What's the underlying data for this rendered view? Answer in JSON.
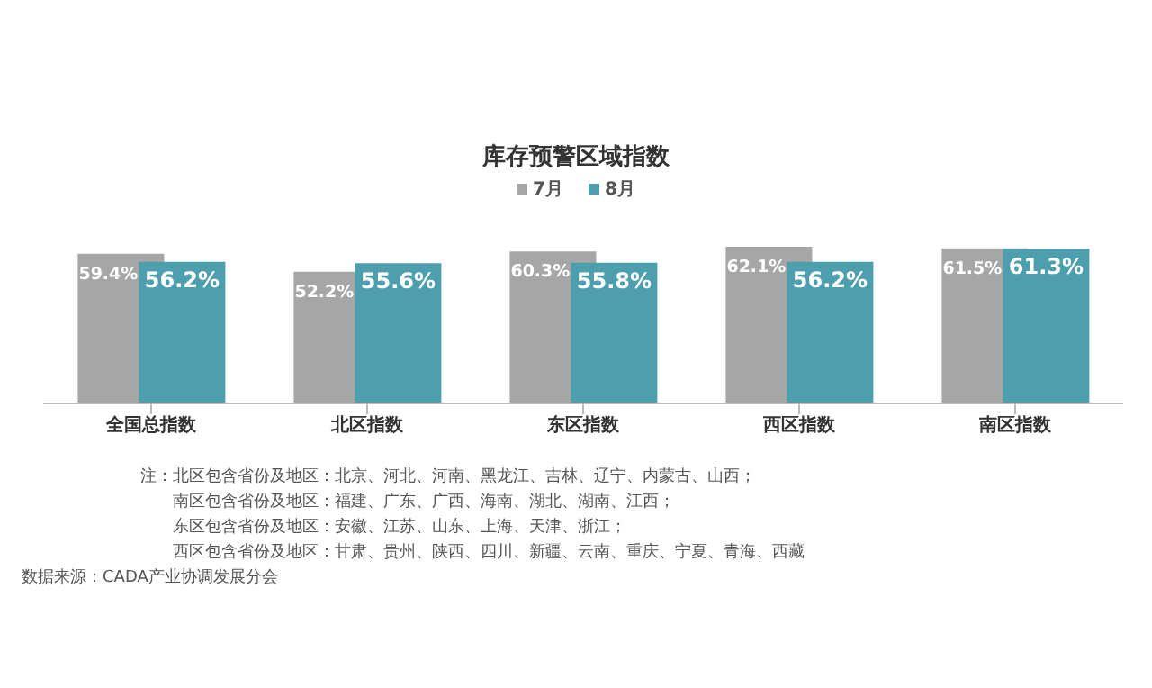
{
  "chart_data": {
    "type": "bar",
    "title": "库存预警区域指数",
    "categories": [
      "全国总指数",
      "北区指数",
      "东区指数",
      "西区指数",
      "南区指数"
    ],
    "series": [
      {
        "name": "7月",
        "color": "#a6a6a6",
        "values": [
          59.4,
          52.2,
          60.3,
          62.1,
          61.5
        ],
        "value_labels": [
          "59.4%",
          "52.2%",
          "60.3%",
          "62.1%",
          "61.5%"
        ]
      },
      {
        "name": "8月",
        "color": "#4e9fad",
        "values": [
          56.2,
          55.6,
          55.8,
          56.2,
          61.3
        ],
        "value_labels": [
          "56.2%",
          "55.6%",
          "55.8%",
          "56.2%",
          "61.3%"
        ]
      }
    ],
    "tick_labels": "x",
    "legend": "top",
    "grid": false,
    "annotations": [
      "注：北区包含省份及地区：北京、河北、河南、黑龙江、吉林、辽宁、内蒙古、山西；",
      "南区包含省份及地区：福建、广东、广西、海南、湖北、湖南、江西；",
      "东区包含省份及地区：安徽、江苏、山东、上海、天津、浙江；",
      "西区包含省份及地区：甘肃、贵州、陕西、四川、新疆、云南、重庆、宁夏、青海、西藏",
      "数据来源：CADA产业协调发展分会"
    ]
  }
}
